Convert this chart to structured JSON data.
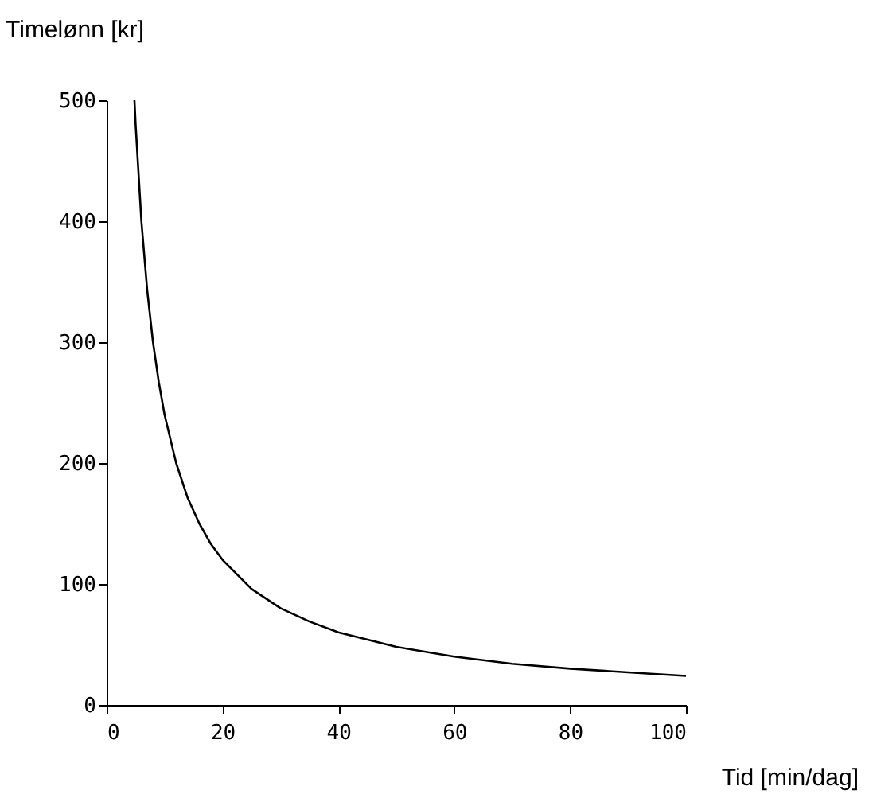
{
  "chart_data": {
    "type": "line",
    "xlabel": "Tid [min/dag]",
    "ylabel": "Timelønn [kr]",
    "x": [
      4.8,
      5,
      6,
      7,
      8,
      9,
      10,
      12,
      14,
      16,
      18,
      20,
      25,
      30,
      35,
      40,
      50,
      60,
      70,
      80,
      90,
      100
    ],
    "series": [
      {
        "color": "#000000",
        "values": [
          500,
          480,
          400,
          343,
          300,
          267,
          240,
          200,
          171,
          150,
          133,
          120,
          96,
          80,
          69,
          60,
          48,
          40,
          34,
          30,
          27,
          24
        ]
      }
    ],
    "xlim": [
      0,
      100
    ],
    "ylim": [
      0,
      500
    ],
    "xticks": [
      0,
      20,
      40,
      60,
      80,
      100
    ],
    "yticks": [
      0,
      100,
      200,
      300,
      400,
      500
    ],
    "grid": false,
    "marker": "none",
    "line_style": "solid"
  }
}
